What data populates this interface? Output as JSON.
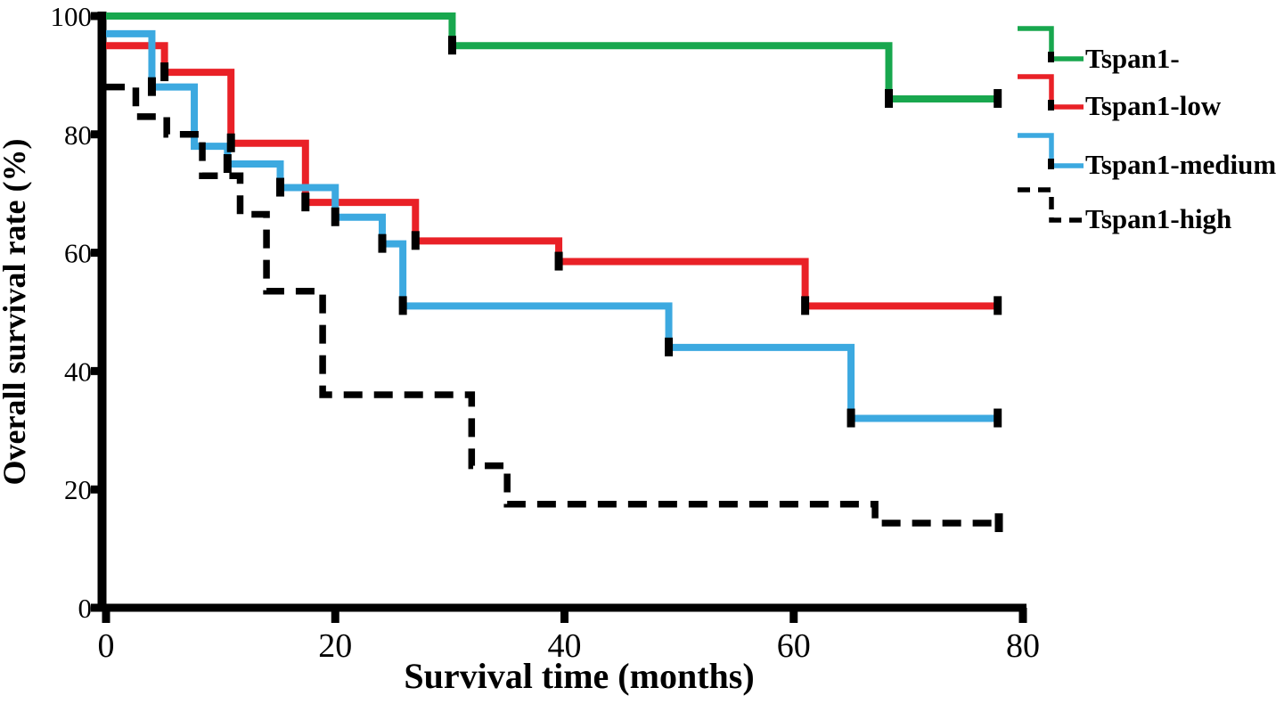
{
  "chart_data": {
    "type": "line",
    "subtype": "kaplan-meier-step",
    "title": "",
    "xlabel": "Survival time (months)",
    "ylabel": "Overall survival rate (%)",
    "xlim": [
      0,
      80
    ],
    "ylim": [
      0,
      100
    ],
    "x_ticks": [
      "0",
      "20",
      "40",
      "60",
      "80"
    ],
    "y_ticks": [
      "0",
      "20",
      "40",
      "60",
      "80",
      "100"
    ],
    "grid": false,
    "legend_position": "right-outside",
    "axis_color": "#000000",
    "series": [
      {
        "name": "Tspan1-",
        "color": "#18a74e",
        "dash": "solid",
        "steps": [
          [
            0,
            100
          ],
          [
            30.2,
            95
          ],
          [
            68.3,
            86
          ]
        ],
        "end_time": 77.8,
        "censor_marks": [
          [
            30.2,
            95
          ],
          [
            68.3,
            86
          ],
          [
            77.8,
            86
          ]
        ]
      },
      {
        "name": "Tspan1-low",
        "color": "#e92127",
        "dash": "solid",
        "steps": [
          [
            0,
            95
          ],
          [
            5.1,
            90.5
          ],
          [
            10.9,
            78.5
          ],
          [
            17.4,
            68.5
          ],
          [
            27,
            62
          ],
          [
            39.5,
            58.5
          ],
          [
            61,
            51
          ]
        ],
        "end_time": 77.8,
        "censor_marks": [
          [
            5.1,
            90.5
          ],
          [
            10.9,
            78.5
          ],
          [
            17.4,
            68.5
          ],
          [
            27,
            62
          ],
          [
            39.5,
            58.5
          ],
          [
            61,
            51
          ],
          [
            77.8,
            51
          ]
        ]
      },
      {
        "name": "Tspan1-medium",
        "color": "#3ca9e0",
        "dash": "solid",
        "steps": [
          [
            0,
            97
          ],
          [
            4,
            88
          ],
          [
            7.7,
            78
          ],
          [
            10.6,
            75
          ],
          [
            15.2,
            71
          ],
          [
            20,
            66
          ],
          [
            24.1,
            61.5
          ],
          [
            25.9,
            51
          ],
          [
            49.1,
            44
          ],
          [
            65,
            32
          ]
        ],
        "end_time": 77.8,
        "censor_marks": [
          [
            4,
            88
          ],
          [
            10.6,
            75
          ],
          [
            15.2,
            71
          ],
          [
            20,
            66
          ],
          [
            24.1,
            61.5
          ],
          [
            25.9,
            51
          ],
          [
            49.1,
            44
          ],
          [
            65,
            32
          ],
          [
            77.8,
            32
          ]
        ]
      },
      {
        "name": "Tspan1-high",
        "color": "#000000",
        "dash": "dashed",
        "steps": [
          [
            0,
            88
          ],
          [
            2.6,
            83
          ],
          [
            5.3,
            80
          ],
          [
            8.4,
            73
          ],
          [
            11.7,
            66.5
          ],
          [
            14,
            53.5
          ],
          [
            18.9,
            36
          ],
          [
            31.9,
            24
          ],
          [
            35,
            17.5
          ],
          [
            67.1,
            14.3
          ]
        ],
        "end_time": 77.9,
        "censor_marks": [
          [
            77.9,
            14.3
          ]
        ]
      }
    ]
  }
}
